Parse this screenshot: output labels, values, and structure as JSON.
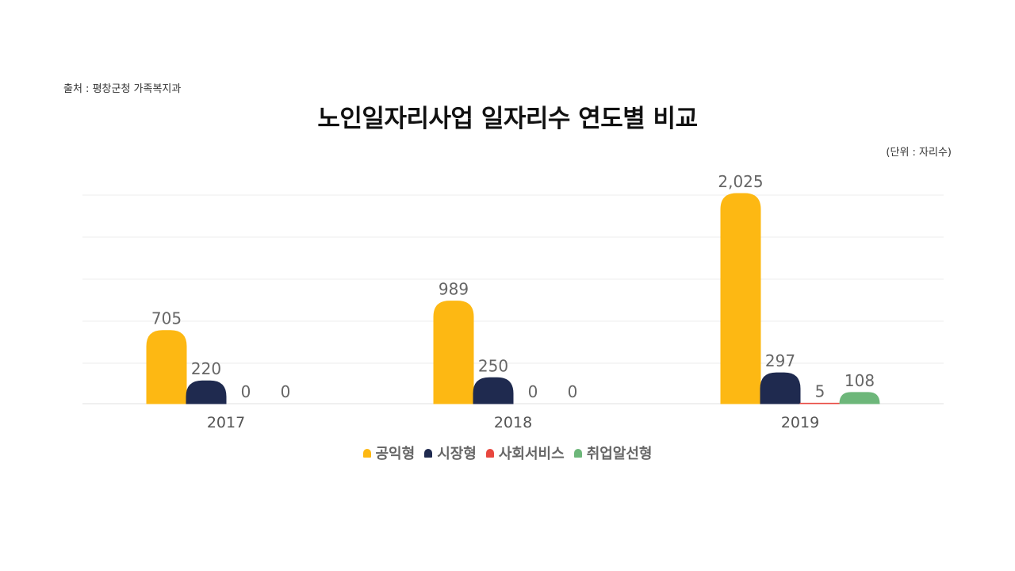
{
  "source": "출처 : 평창군청 가족복지과",
  "unit": "(단위 : 자리수)",
  "chart_data": {
    "type": "bar",
    "title": "노인일자리사업 일자리수 연도별 비교",
    "categories": [
      "2017",
      "2018",
      "2019"
    ],
    "series": [
      {
        "name": "공익형",
        "color": "#FDB813",
        "values": [
          705,
          989,
          2025
        ],
        "labels": [
          "705",
          "989",
          "2,025"
        ]
      },
      {
        "name": "시장형",
        "color": "#1F2A4F",
        "values": [
          220,
          250,
          297
        ],
        "labels": [
          "220",
          "250",
          "297"
        ]
      },
      {
        "name": "사회서비스",
        "color": "#E8473F",
        "values": [
          0,
          0,
          5
        ],
        "labels": [
          "0",
          "0",
          "5"
        ]
      },
      {
        "name": "취업알선형",
        "color": "#6DB77A",
        "values": [
          0,
          0,
          108
        ],
        "labels": [
          "0",
          "0",
          "108"
        ]
      }
    ],
    "ylim": [
      0,
      2025
    ],
    "grid": true,
    "legend_position": "bottom"
  }
}
